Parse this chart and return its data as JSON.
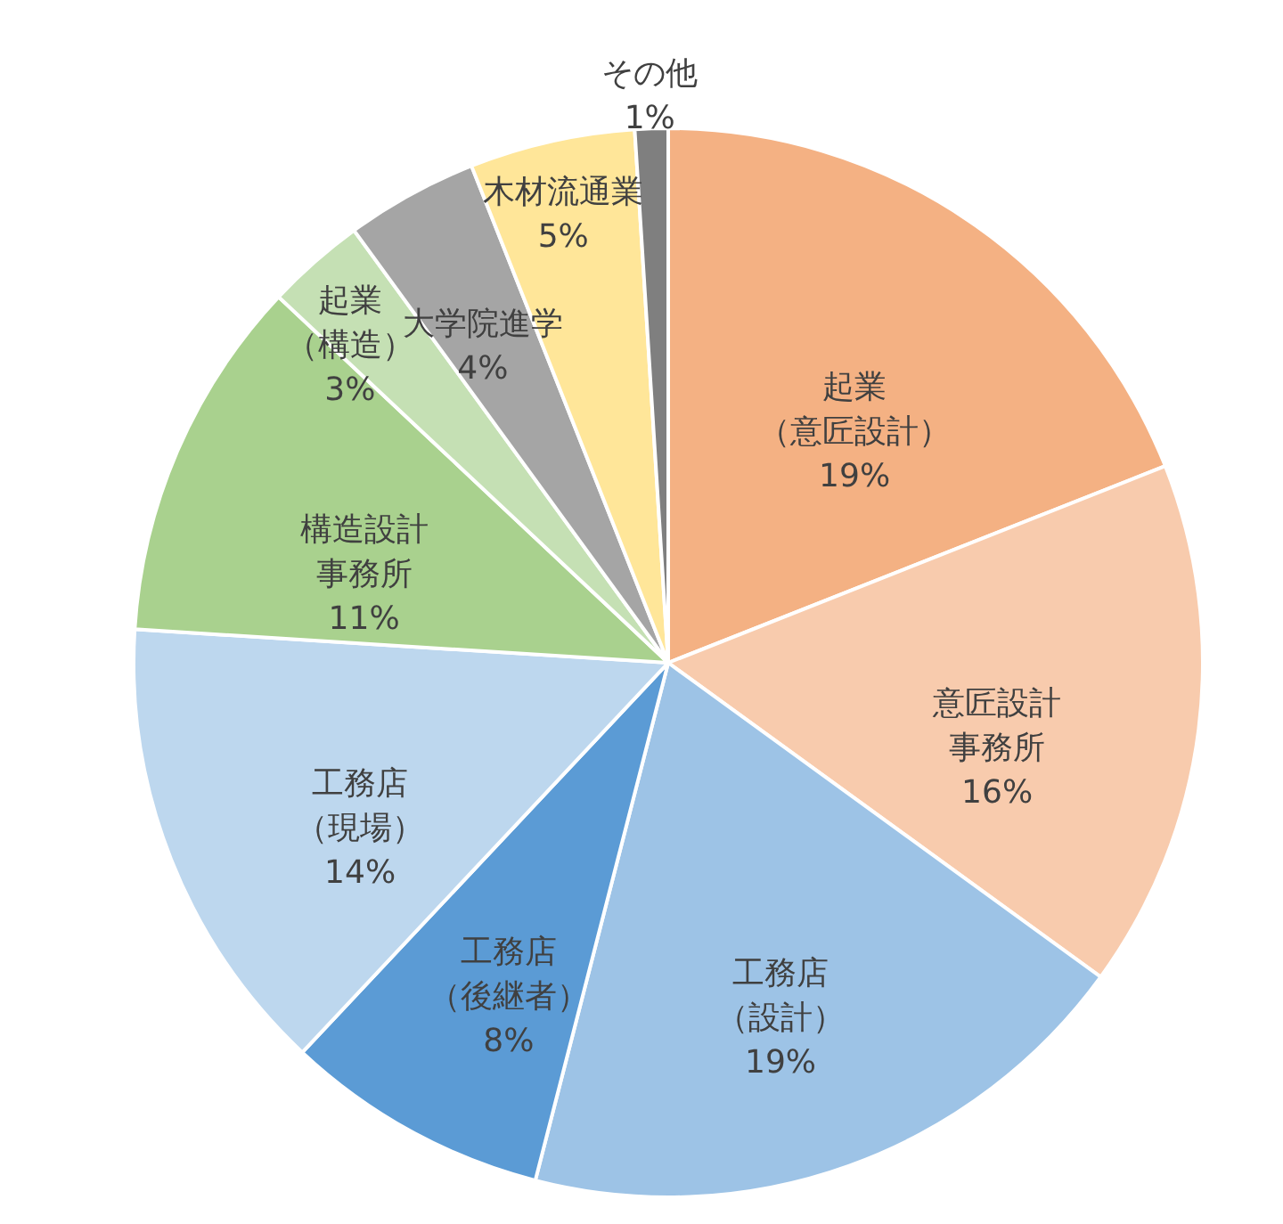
{
  "chart_data": {
    "type": "pie",
    "categories": [
      "起業（意匠設計）",
      "意匠設計事務所",
      "工務店（設計）",
      "工務店（後継者）",
      "工務店（現場）",
      "構造設計事務所",
      "起業（構造）",
      "大学院進学",
      "木材流通業",
      "その他"
    ],
    "values": [
      19,
      16,
      19,
      8,
      14,
      11,
      3,
      4,
      5,
      1
    ],
    "value_labels": [
      "19%",
      "16%",
      "19%",
      "8%",
      "14%",
      "11%",
      "3%",
      "4%",
      "5%",
      "1%"
    ],
    "colors": [
      "#f4b183",
      "#f8cbad",
      "#9dc3e6",
      "#5b9bd5",
      "#bdd7ee",
      "#a9d18e",
      "#c5e0b4",
      "#a5a5a5",
      "#ffe699",
      "#7f7f7f"
    ],
    "legend": false
  }
}
